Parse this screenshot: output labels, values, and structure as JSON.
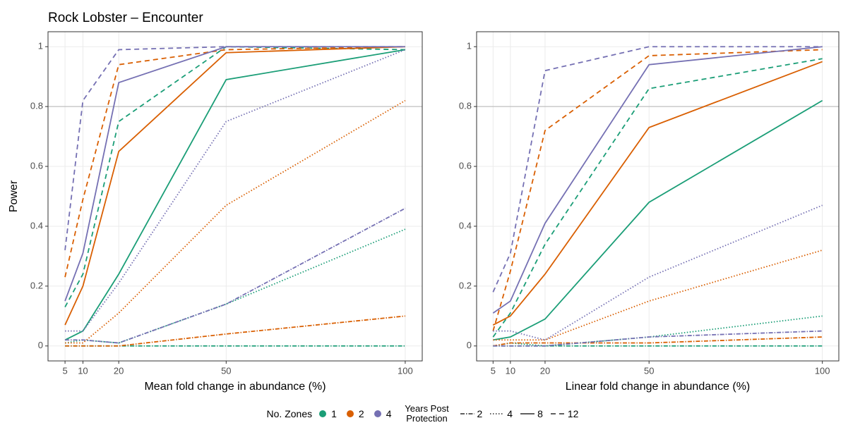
{
  "chart_data": [
    {
      "type": "line",
      "title": "Rock Lobster – Encounter",
      "x_label": "Mean fold change in abundance (%)",
      "y_label": "Power",
      "x": [
        5,
        10,
        20,
        50,
        100
      ],
      "xlim": [
        0.25,
        104.75
      ],
      "ylim": [
        -0.05,
        1.05
      ],
      "xticks": [
        5,
        10,
        20,
        50,
        100
      ],
      "yticks": [
        0,
        0.2,
        0.4,
        0.6,
        0.8,
        1
      ],
      "hline": 0.8,
      "grid": true,
      "series": [
        {
          "color": "#1b9e77",
          "dash": "6 2 1.5 2",
          "values": [
            0,
            0,
            0,
            0,
            0
          ]
        },
        {
          "color": "#1b9e77",
          "dash": "1.5 2.5",
          "values": [
            0.01,
            0.02,
            0.01,
            0.14,
            0.39
          ]
        },
        {
          "color": "#1b9e77",
          "dash": "none",
          "values": [
            0.02,
            0.05,
            0.24,
            0.89,
            0.99
          ]
        },
        {
          "color": "#1b9e77",
          "dash": "7 5",
          "values": [
            0.13,
            0.24,
            0.75,
            1.0,
            0.99
          ]
        },
        {
          "color": "#d95f02",
          "dash": "6 2 1.5 2",
          "values": [
            0,
            0,
            0,
            0.04,
            0.1
          ]
        },
        {
          "color": "#d95f02",
          "dash": "1.5 2.5",
          "values": [
            0.01,
            0.01,
            0.11,
            0.47,
            0.82
          ]
        },
        {
          "color": "#d95f02",
          "dash": "none",
          "values": [
            0.07,
            0.2,
            0.65,
            0.98,
            1.0
          ]
        },
        {
          "color": "#d95f02",
          "dash": "7 5",
          "values": [
            0.23,
            0.49,
            0.94,
            0.99,
            1.0
          ]
        },
        {
          "color": "#7570b3",
          "dash": "6 2 1.5 2",
          "values": [
            0.02,
            0.02,
            0.01,
            0.14,
            0.46
          ]
        },
        {
          "color": "#7570b3",
          "dash": "1.5 2.5",
          "values": [
            0.05,
            0.05,
            0.21,
            0.75,
            0.99
          ]
        },
        {
          "color": "#7570b3",
          "dash": "none",
          "values": [
            0.15,
            0.31,
            0.88,
            1.0,
            1.0
          ]
        },
        {
          "color": "#7570b3",
          "dash": "7 5",
          "values": [
            0.32,
            0.82,
            0.99,
            1.0,
            1.0
          ]
        }
      ]
    },
    {
      "type": "line",
      "x_label": "Linear fold change in abundance (%)",
      "x": [
        5,
        10,
        20,
        50,
        100
      ],
      "xlim": [
        0.25,
        104.75
      ],
      "ylim": [
        -0.05,
        1.05
      ],
      "xticks": [
        5,
        10,
        20,
        50,
        100
      ],
      "yticks": [
        0,
        0.2,
        0.4,
        0.6,
        0.8,
        1
      ],
      "hline": 0.8,
      "grid": true,
      "series": [
        {
          "color": "#1b9e77",
          "dash": "6 2 1.5 2",
          "values": [
            0,
            0,
            0,
            0,
            0
          ]
        },
        {
          "color": "#1b9e77",
          "dash": "1.5 2.5",
          "values": [
            0,
            0.01,
            0,
            0.03,
            0.1
          ]
        },
        {
          "color": "#1b9e77",
          "dash": "none",
          "values": [
            0.02,
            0.03,
            0.09,
            0.48,
            0.82
          ]
        },
        {
          "color": "#1b9e77",
          "dash": "7 5",
          "values": [
            0.03,
            0.11,
            0.34,
            0.86,
            0.96
          ]
        },
        {
          "color": "#d95f02",
          "dash": "6 2 1.5 2",
          "values": [
            0,
            0.01,
            0.01,
            0.01,
            0.03
          ]
        },
        {
          "color": "#d95f02",
          "dash": "1.5 2.5",
          "values": [
            0.02,
            0.02,
            0.02,
            0.15,
            0.32
          ]
        },
        {
          "color": "#d95f02",
          "dash": "none",
          "values": [
            0.07,
            0.1,
            0.24,
            0.73,
            0.95
          ]
        },
        {
          "color": "#d95f02",
          "dash": "7 5",
          "values": [
            0.05,
            0.25,
            0.72,
            0.97,
            0.99
          ]
        },
        {
          "color": "#7570b3",
          "dash": "6 2 1.5 2",
          "values": [
            0,
            0,
            0,
            0.03,
            0.05
          ]
        },
        {
          "color": "#7570b3",
          "dash": "1.5 2.5",
          "values": [
            0.05,
            0.05,
            0.02,
            0.23,
            0.47
          ]
        },
        {
          "color": "#7570b3",
          "dash": "none",
          "values": [
            0.11,
            0.15,
            0.41,
            0.94,
            1.0
          ]
        },
        {
          "color": "#7570b3",
          "dash": "7 5",
          "values": [
            0.18,
            0.31,
            0.92,
            1.0,
            1.0
          ]
        }
      ]
    }
  ],
  "legend": {
    "color_title": "No. Zones",
    "colors": [
      {
        "label": "1",
        "color": "#1b9e77"
      },
      {
        "label": "2",
        "color": "#d95f02"
      },
      {
        "label": "4",
        "color": "#7570b3"
      }
    ],
    "linetype_title": "Years Post Protection",
    "linetypes": [
      {
        "label": "2",
        "dash": "6 2 1.5 2"
      },
      {
        "label": "4",
        "dash": "1.5 2.5"
      },
      {
        "label": "8",
        "dash": "none"
      },
      {
        "label": "12",
        "dash": "7 5"
      }
    ]
  }
}
